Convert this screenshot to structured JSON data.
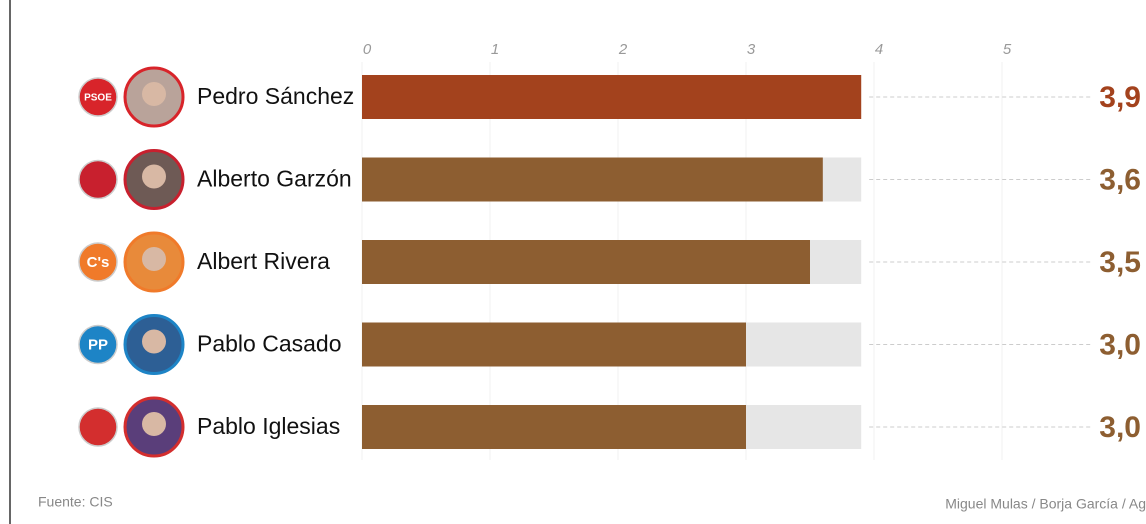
{
  "chart_data": {
    "type": "bar",
    "categories": [
      "Pedro Sánchez",
      "Alberto Garzón",
      "Albert Rivera",
      "Pablo Casado",
      "Pablo Iglesias"
    ],
    "values": [
      3.9,
      3.6,
      3.5,
      3.0,
      3.0
    ],
    "value_labels": [
      "3,9",
      "3,6",
      "3,5",
      "3,0",
      "3,0"
    ],
    "colors": [
      "#a3421d",
      "#8d5e31",
      "#8d5e31",
      "#8d5e31",
      "#8d5e31"
    ],
    "xlim": [
      0,
      5
    ],
    "xticks": [
      0,
      1,
      2,
      3,
      4,
      5
    ],
    "grid": true
  },
  "logos": [
    {
      "text": "PSOE",
      "color": "#d8242a"
    },
    {
      "color": "#c8202e"
    },
    {
      "text": "C's",
      "color": "#f07a2a"
    },
    {
      "text": "PP",
      "color": "#1d84c6"
    },
    {
      "color": "#d32e2e"
    }
  ],
  "footer": {
    "source": "Fuente: CIS",
    "credit": "Miguel Mulas / Borja García / Ag"
  }
}
